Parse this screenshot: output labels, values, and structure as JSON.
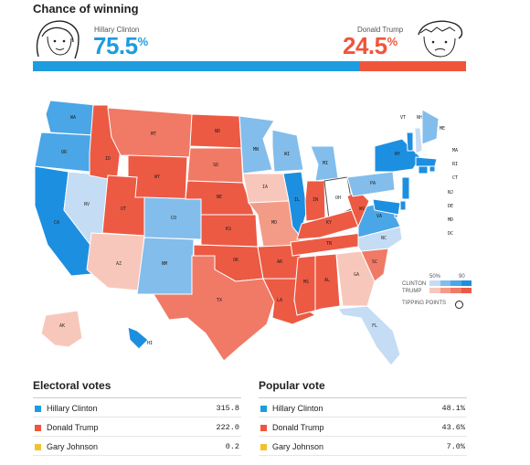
{
  "header": {
    "title": "Chance of winning"
  },
  "candidates": {
    "clinton": {
      "name": "Hillary Clinton",
      "number": "75.5",
      "sign": "%",
      "probability": 0.755
    },
    "trump": {
      "name": "Donald Trump",
      "number": "24.5",
      "sign": "%",
      "probability": 0.245
    }
  },
  "colors": {
    "clinton": "#1d9ce0",
    "trump": "#f0553c",
    "johnson": "#f2c12e"
  },
  "map": {
    "states": [
      {
        "code": "WA",
        "lean": "D3"
      },
      {
        "code": "OR",
        "lean": "D3"
      },
      {
        "code": "CA",
        "lean": "D4"
      },
      {
        "code": "NV",
        "lean": "D1"
      },
      {
        "code": "ID",
        "lean": "R4"
      },
      {
        "code": "MT",
        "lean": "R3"
      },
      {
        "code": "WY",
        "lean": "R4"
      },
      {
        "code": "UT",
        "lean": "R4"
      },
      {
        "code": "AZ",
        "lean": "R1"
      },
      {
        "code": "CO",
        "lean": "D2"
      },
      {
        "code": "NM",
        "lean": "D2"
      },
      {
        "code": "ND",
        "lean": "R4"
      },
      {
        "code": "SD",
        "lean": "R3"
      },
      {
        "code": "NE",
        "lean": "R4"
      },
      {
        "code": "KS",
        "lean": "R4"
      },
      {
        "code": "OK",
        "lean": "R4"
      },
      {
        "code": "TX",
        "lean": "R3"
      },
      {
        "code": "MN",
        "lean": "D2"
      },
      {
        "code": "IA",
        "lean": "R1"
      },
      {
        "code": "MO",
        "lean": "R2"
      },
      {
        "code": "AR",
        "lean": "R4"
      },
      {
        "code": "LA",
        "lean": "R4"
      },
      {
        "code": "WI",
        "lean": "D2"
      },
      {
        "code": "IL",
        "lean": "D4"
      },
      {
        "code": "MI",
        "lean": "D2"
      },
      {
        "code": "IN",
        "lean": "R4"
      },
      {
        "code": "OH",
        "lean": "T"
      },
      {
        "code": "KY",
        "lean": "R4"
      },
      {
        "code": "TN",
        "lean": "R4"
      },
      {
        "code": "MS",
        "lean": "R4"
      },
      {
        "code": "AL",
        "lean": "R4"
      },
      {
        "code": "GA",
        "lean": "R1"
      },
      {
        "code": "FL",
        "lean": "D1"
      },
      {
        "code": "SC",
        "lean": "R3"
      },
      {
        "code": "NC",
        "lean": "D1"
      },
      {
        "code": "VA",
        "lean": "D3"
      },
      {
        "code": "WV",
        "lean": "R4"
      },
      {
        "code": "PA",
        "lean": "D2"
      },
      {
        "code": "NY",
        "lean": "D4"
      },
      {
        "code": "VT",
        "lean": "D4"
      },
      {
        "code": "NH",
        "lean": "D1"
      },
      {
        "code": "ME",
        "lean": "D2"
      },
      {
        "code": "MA",
        "lean": "D4"
      },
      {
        "code": "RI",
        "lean": "D4"
      },
      {
        "code": "CT",
        "lean": "D4"
      },
      {
        "code": "NJ",
        "lean": "D4"
      },
      {
        "code": "DE",
        "lean": "D4"
      },
      {
        "code": "MD",
        "lean": "D4"
      },
      {
        "code": "DC",
        "lean": "D4"
      },
      {
        "code": "AK",
        "lean": "R1"
      },
      {
        "code": "HI",
        "lean": "D4"
      }
    ],
    "leanColors": {
      "D4": "#1d8fe0",
      "D3": "#4aa6e6",
      "D2": "#83bdeb",
      "D1": "#c4dcf4",
      "T": "#ffffff",
      "R1": "#f8c7bb",
      "R2": "#f49b88",
      "R3": "#f07a66",
      "R4": "#ec5a44"
    }
  },
  "legend": {
    "pct50": "50%",
    "pct90": "90",
    "clinton": "CLINTON",
    "trump": "TRUMP",
    "tipping": "TIPPING POINTS"
  },
  "electoral": {
    "title": "Electoral votes",
    "rows": [
      {
        "name": "Hillary Clinton",
        "value": "315.8",
        "color": "#1d9ce0"
      },
      {
        "name": "Donald Trump",
        "value": "222.0",
        "color": "#f0553c"
      },
      {
        "name": "Gary Johnson",
        "value": "0.2",
        "color": "#f2c12e"
      }
    ]
  },
  "popular": {
    "title": "Popular vote",
    "rows": [
      {
        "name": "Hillary Clinton",
        "value": "48.1%",
        "color": "#1d9ce0"
      },
      {
        "name": "Donald Trump",
        "value": "43.6%",
        "color": "#f0553c"
      },
      {
        "name": "Gary Johnson",
        "value": "7.0%",
        "color": "#f2c12e"
      }
    ]
  }
}
